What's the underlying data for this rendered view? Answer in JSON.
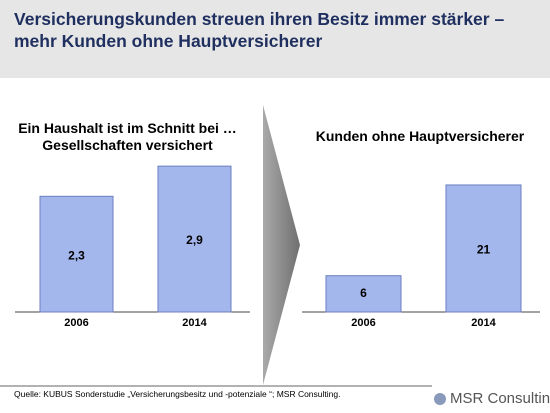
{
  "header": {
    "title": "Versicherungskunden streuen ihren Besitz immer stärker – mehr Kunden ohne Hauptversicherer"
  },
  "chart_data": [
    {
      "type": "bar",
      "title": "Ein Haushalt ist im Schnitt bei … Gesellschaften versichert",
      "categories": [
        "2006",
        "2014"
      ],
      "values": [
        2.3,
        2.9
      ],
      "value_labels": [
        "2,3",
        "2,9"
      ],
      "color": "#a3b7ec"
    },
    {
      "type": "bar",
      "title": "Kunden ohne Hauptversicherer",
      "categories": [
        "2006",
        "2014"
      ],
      "values": [
        6,
        21
      ],
      "color": "#a3b7ec"
    }
  ],
  "footer": {
    "source": "Quelle:  KUBUS Sonderstudie „Versicherungsbesitz und -potenziale “; MSR Consulting.",
    "logo": "MSR Consulting"
  }
}
